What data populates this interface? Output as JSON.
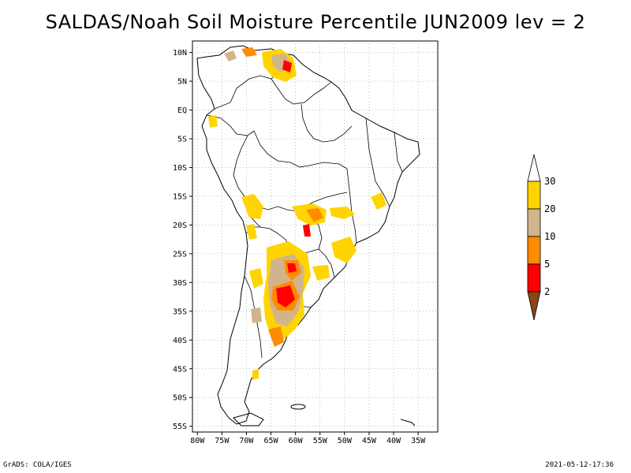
{
  "title": "SALDAS/Noah Soil Moisture Percentile JUN2009 lev = 2",
  "map": {
    "lat_labels": [
      "10N",
      "5N",
      "EQ",
      "5S",
      "10S",
      "15S",
      "20S",
      "25S",
      "30S",
      "35S",
      "40S",
      "45S",
      "50S",
      "55S"
    ],
    "lat_values": [
      10,
      5,
      0,
      -5,
      -10,
      -15,
      -20,
      -25,
      -30,
      -35,
      -40,
      -45,
      -50,
      -55
    ],
    "lon_labels": [
      "80W",
      "75W",
      "70W",
      "65W",
      "60W",
      "55W",
      "50W",
      "45W",
      "40W",
      "35W"
    ],
    "lon_values": [
      -80,
      -75,
      -70,
      -65,
      -60,
      -55,
      -50,
      -45,
      -40,
      -35
    ],
    "lon_range": [
      -81,
      -31
    ],
    "lat_range": [
      -56,
      12
    ]
  },
  "colorbar": {
    "labels": [
      "30",
      "20",
      "10",
      "5",
      "2"
    ],
    "colors": [
      "#ffffff",
      "#ffd400",
      "#d2b48c",
      "#ff8c00",
      "#ff0000",
      "#8b4513"
    ]
  },
  "footer": {
    "left": "GrADS: COLA/IGES",
    "right": "2021-05-12-17:36"
  }
}
